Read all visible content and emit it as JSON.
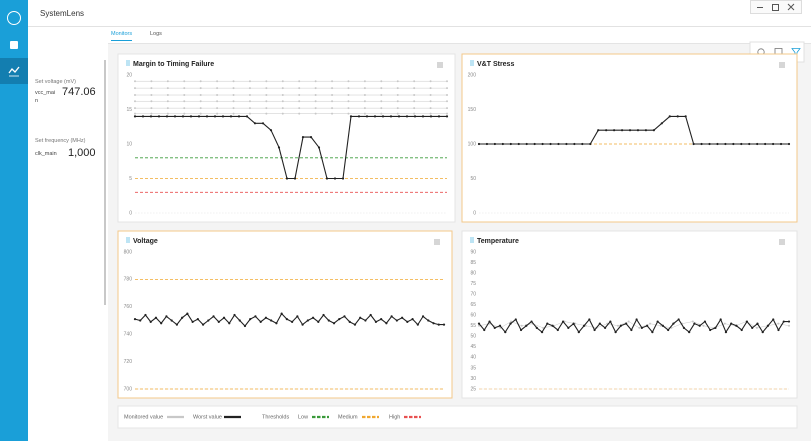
{
  "app_title": "SystemLens",
  "tabs": [
    {
      "label": "Monitors",
      "active": true
    },
    {
      "label": "Logs",
      "active": false
    }
  ],
  "settings": [
    {
      "label": "Set voltage (mV)",
      "name": "vcc_main",
      "value": "747.06"
    },
    {
      "label": "Set frequency (MHz)",
      "name": "clk_main",
      "value": "1,000"
    }
  ],
  "chart_data": [
    {
      "type": "line",
      "title": "Margin to Timing Failure",
      "ylim": [
        0,
        20
      ],
      "yticks": [
        0,
        5,
        10,
        15,
        20
      ],
      "thresholds": [
        {
          "value": 8,
          "color": "#3a9a3a"
        },
        {
          "value": 5,
          "color": "#f0a830"
        },
        {
          "value": 3,
          "color": "#e85050"
        }
      ],
      "series": [
        {
          "color": "#c8c8c8",
          "dotted": true,
          "values": [
            19.1,
            19.1,
            19.1,
            19.1,
            19.1,
            19.1,
            19.1,
            19.1,
            19.1,
            19.1,
            19.1,
            19.1,
            19.1,
            19.1,
            19.1,
            19.1,
            19.1,
            19.1,
            19.1,
            19.1
          ]
        },
        {
          "color": "#c8c8c8",
          "dotted": true,
          "values": [
            18.1,
            18.1,
            18.1,
            18.1,
            18.1,
            18.1,
            18.1,
            18.1,
            18.1,
            18.1,
            18.1,
            18.1,
            18.1,
            18.1,
            18.1,
            18.1,
            18.1,
            18.1,
            18.1,
            18.1
          ]
        },
        {
          "color": "#c8c8c8",
          "dotted": true,
          "values": [
            17.1,
            17.1,
            17.1,
            17.1,
            17.1,
            17.1,
            17.1,
            17.1,
            17.1,
            17.1,
            17.1,
            17.1,
            17.1,
            17.1,
            17.1,
            17.1,
            17.1,
            17.1,
            17.1,
            17.1
          ]
        },
        {
          "color": "#c8c8c8",
          "dotted": true,
          "values": [
            16.2,
            16.2,
            16.2,
            16.2,
            16.2,
            16.2,
            16.2,
            16.2,
            16.2,
            16.2,
            16.2,
            16.2,
            16.2,
            16.2,
            16.2,
            16.2,
            16.2,
            16.2,
            16.2,
            16.2
          ]
        },
        {
          "color": "#c8c8c8",
          "dotted": true,
          "values": [
            15.2,
            15.2,
            15.2,
            15.2,
            15.2,
            15.2,
            15.2,
            15.2,
            15.2,
            15.2,
            15.2,
            15.2,
            15.2,
            15.2,
            15.2,
            15.2,
            15.2,
            15.2,
            15.2,
            15.2
          ]
        },
        {
          "color": "#c8c8c8",
          "dotted": true,
          "values": [
            14.4,
            14.4,
            14.4,
            14.4,
            14.4,
            14.4,
            14.4,
            14.4,
            14.4,
            14.4,
            14.4,
            14.4,
            14.4,
            14.4,
            14.4,
            14.4,
            14.4,
            14.4,
            14.4,
            14.4
          ]
        },
        {
          "color": "#222222",
          "dotted": false,
          "values": [
            14,
            14,
            14,
            14,
            14,
            14,
            14,
            14,
            14,
            14,
            14,
            14,
            14,
            14,
            14,
            13,
            13,
            12,
            9.5,
            5,
            5,
            11,
            11,
            9.5,
            5,
            5,
            5,
            14,
            14,
            14,
            14,
            14,
            14,
            14,
            14,
            14,
            14,
            14,
            14,
            14
          ]
        }
      ]
    },
    {
      "type": "line",
      "title": "V&T Stress",
      "ylim": [
        0,
        200
      ],
      "yticks": [
        0,
        50,
        100,
        150,
        200
      ],
      "thresholds": [
        {
          "value": 100,
          "color": "#f0a830"
        }
      ],
      "series": [
        {
          "color": "#222222",
          "dotted": false,
          "values": [
            100,
            100,
            100,
            100,
            100,
            100,
            100,
            100,
            100,
            100,
            100,
            100,
            100,
            100,
            100,
            120,
            120,
            120,
            120,
            120,
            120,
            120,
            120,
            130,
            140,
            140,
            140,
            100,
            100,
            100,
            100,
            100,
            100,
            100,
            100,
            100,
            100,
            100,
            100,
            100
          ]
        }
      ]
    },
    {
      "type": "line",
      "title": "Voltage",
      "ylim": [
        700,
        800
      ],
      "yticks": [
        700,
        720,
        740,
        760,
        780,
        800
      ],
      "thresholds": [
        {
          "value": 780,
          "color": "#f0a830"
        },
        {
          "value": 700,
          "color": "#f0a830"
        }
      ],
      "series": [
        {
          "color": "#222222",
          "dotted": false,
          "values": [
            751,
            750,
            754,
            749,
            752,
            748,
            753,
            750,
            747,
            752,
            755,
            749,
            751,
            747,
            750,
            753,
            749,
            752,
            748,
            754,
            750,
            746,
            751,
            753,
            749,
            752,
            750,
            748,
            755,
            751,
            749,
            753,
            747,
            750,
            752,
            749,
            754,
            750,
            748,
            751,
            753,
            749,
            747,
            752,
            750,
            754,
            749,
            751,
            748,
            753,
            750,
            752,
            749,
            751,
            747,
            753,
            750,
            748,
            747,
            747
          ]
        }
      ]
    },
    {
      "type": "line",
      "title": "Temperature",
      "ylim": [
        25,
        90
      ],
      "yticks": [
        25,
        30,
        35,
        40,
        45,
        50,
        55,
        60,
        65,
        70,
        75,
        80,
        85,
        90
      ],
      "thresholds": [
        {
          "value": 25,
          "color": "#f0c890"
        }
      ],
      "series": [
        {
          "color": "#c8c8c8",
          "dotted": true,
          "values": [
            55,
            56,
            54,
            57,
            55,
            56,
            54,
            55,
            57,
            56,
            55,
            54,
            56,
            55,
            57,
            54,
            56,
            55,
            54,
            56,
            57,
            55,
            54,
            56,
            55,
            57,
            54,
            55,
            56,
            55
          ]
        },
        {
          "color": "#222222",
          "dotted": false,
          "values": [
            56,
            53,
            57,
            54,
            55,
            52,
            56,
            58,
            53,
            55,
            57,
            54,
            52,
            56,
            55,
            53,
            57,
            54,
            56,
            52,
            55,
            58,
            53,
            56,
            54,
            57,
            52,
            55,
            56,
            53,
            58,
            54,
            55,
            52,
            57,
            55,
            53,
            56,
            58,
            54,
            52,
            56,
            55,
            57,
            53,
            54,
            58,
            52,
            56,
            55,
            53,
            57,
            54,
            56,
            52,
            55,
            58,
            53,
            57,
            57
          ]
        }
      ]
    }
  ],
  "legend": {
    "items": [
      {
        "label": "Monitored value",
        "color": "#c8c8c8"
      },
      {
        "label": "Worst value",
        "color": "#222222"
      }
    ],
    "thresholds_label": "Thresholds",
    "threshold_items": [
      {
        "label": "Low",
        "color": "#3a9a3a"
      },
      {
        "label": "Medium",
        "color": "#f0a830"
      },
      {
        "label": "High",
        "color": "#e85050"
      }
    ]
  }
}
